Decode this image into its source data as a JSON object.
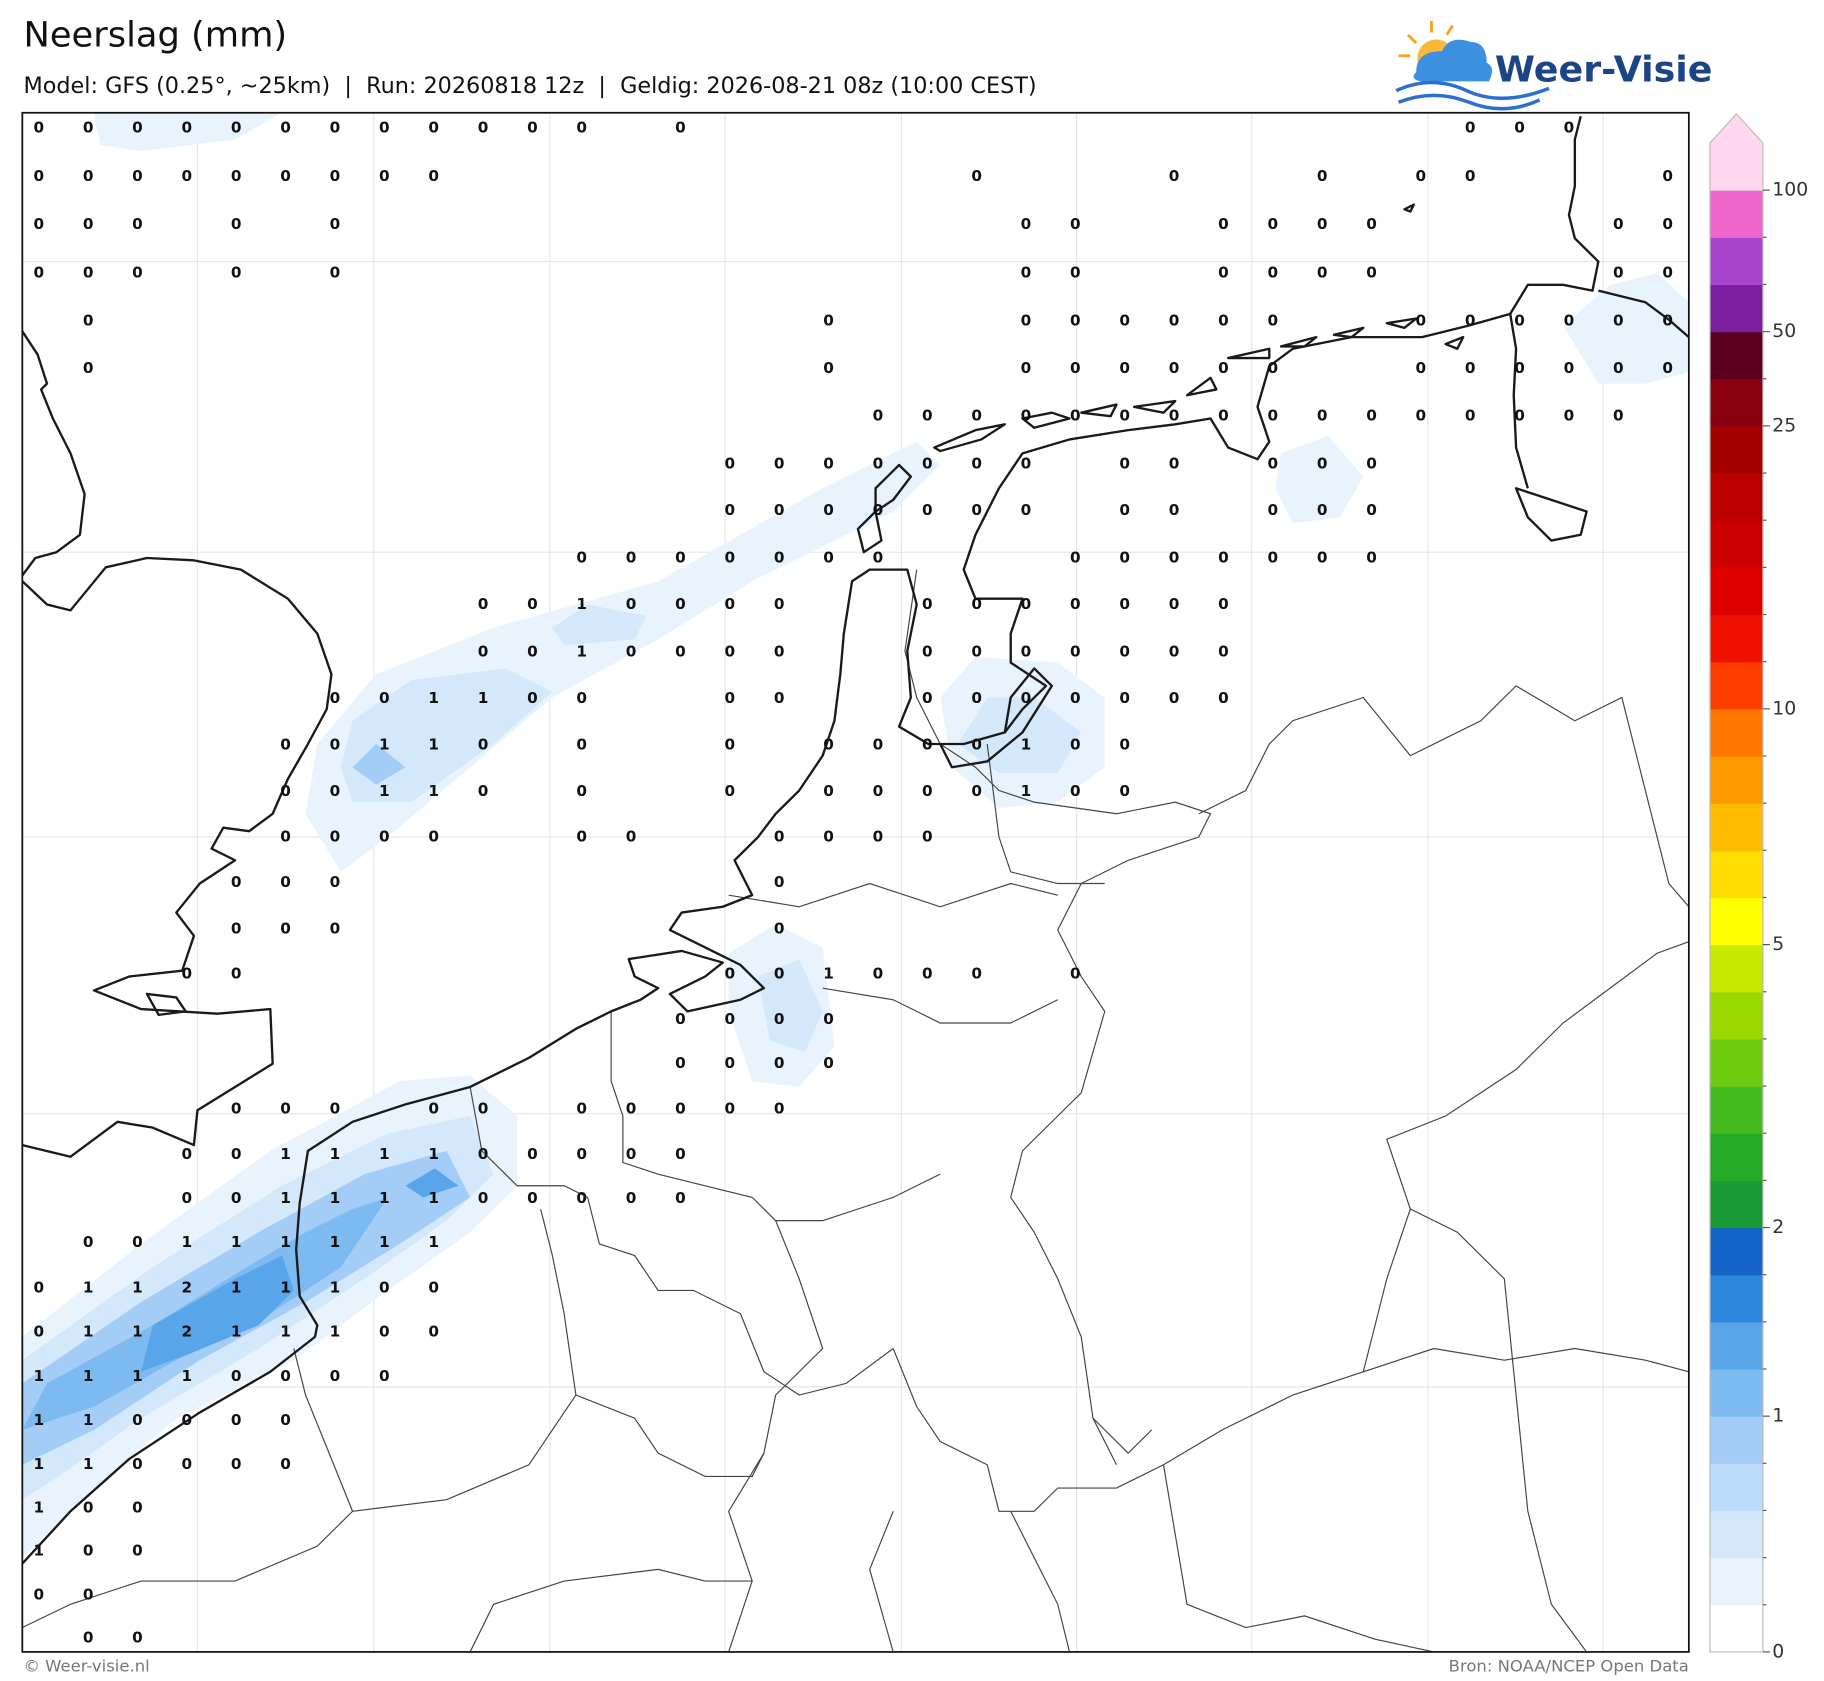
{
  "header": {
    "title": "Neerslag (mm)",
    "subtitle": "Model: GFS (0.25°, ~25km)  |  Run: 20260818 12z  |  Geldig: 2026-08-21 08z (10:00 CEST)",
    "logo": "Weer-Visie"
  },
  "map": {
    "values": [
      [
        0,
        0,
        0,
        0,
        0,
        0,
        0,
        0,
        0,
        0,
        0,
        0,
        null,
        0,
        null,
        null,
        null,
        null,
        null,
        null,
        null,
        null,
        null,
        null,
        null,
        null,
        null,
        null,
        null,
        0,
        0,
        0,
        null,
        null
      ],
      [
        0,
        0,
        0,
        0,
        0,
        0,
        0,
        0,
        0,
        null,
        null,
        null,
        null,
        null,
        null,
        null,
        null,
        null,
        null,
        0,
        null,
        null,
        null,
        0,
        null,
        null,
        0,
        null,
        0,
        0,
        null,
        null,
        null,
        0
      ],
      [
        0,
        0,
        0,
        null,
        0,
        null,
        0,
        null,
        null,
        null,
        null,
        null,
        null,
        null,
        null,
        null,
        null,
        null,
        null,
        null,
        0,
        0,
        null,
        null,
        0,
        0,
        0,
        0,
        null,
        null,
        null,
        null,
        0,
        0
      ],
      [
        0,
        0,
        0,
        null,
        0,
        null,
        0,
        null,
        null,
        null,
        null,
        null,
        null,
        null,
        null,
        null,
        null,
        null,
        null,
        null,
        0,
        0,
        null,
        null,
        0,
        0,
        0,
        0,
        null,
        null,
        null,
        null,
        0,
        0
      ],
      [
        null,
        0,
        null,
        null,
        null,
        null,
        null,
        null,
        null,
        null,
        null,
        null,
        null,
        null,
        null,
        null,
        0,
        null,
        null,
        null,
        0,
        0,
        0,
        0,
        0,
        0,
        null,
        null,
        0,
        0,
        0,
        0,
        0,
        0
      ],
      [
        null,
        0,
        null,
        null,
        null,
        null,
        null,
        null,
        null,
        null,
        null,
        null,
        null,
        null,
        null,
        null,
        0,
        null,
        null,
        null,
        0,
        0,
        0,
        0,
        0,
        0,
        null,
        null,
        0,
        0,
        0,
        0,
        0,
        0
      ],
      [
        null,
        null,
        null,
        null,
        null,
        null,
        null,
        null,
        null,
        null,
        null,
        null,
        null,
        null,
        null,
        null,
        null,
        0,
        0,
        0,
        0,
        0,
        0,
        0,
        0,
        0,
        0,
        0,
        0,
        0,
        0,
        0,
        0,
        null
      ],
      [
        null,
        null,
        null,
        null,
        null,
        null,
        null,
        null,
        null,
        null,
        null,
        null,
        null,
        null,
        0,
        0,
        0,
        0,
        0,
        0,
        0,
        null,
        0,
        0,
        null,
        0,
        0,
        0,
        null,
        null,
        null,
        null,
        null,
        null
      ],
      [
        null,
        null,
        null,
        null,
        null,
        null,
        null,
        null,
        null,
        null,
        null,
        null,
        null,
        null,
        0,
        0,
        0,
        0,
        0,
        0,
        0,
        null,
        0,
        0,
        null,
        0,
        0,
        0,
        null,
        null,
        null,
        null,
        null,
        null
      ],
      [
        null,
        null,
        null,
        null,
        null,
        null,
        null,
        null,
        null,
        null,
        null,
        0,
        0,
        0,
        0,
        0,
        0,
        0,
        null,
        null,
        null,
        0,
        0,
        0,
        0,
        0,
        0,
        0,
        null,
        null,
        null,
        null,
        null,
        null
      ],
      [
        null,
        null,
        null,
        null,
        null,
        null,
        null,
        null,
        null,
        0,
        0,
        1,
        0,
        0,
        0,
        0,
        null,
        null,
        0,
        0,
        0,
        0,
        0,
        0,
        0,
        null,
        null,
        null,
        null,
        null,
        null,
        null,
        null,
        null
      ],
      [
        null,
        null,
        null,
        null,
        null,
        null,
        null,
        null,
        null,
        0,
        0,
        1,
        0,
        0,
        0,
        0,
        null,
        null,
        0,
        0,
        0,
        0,
        0,
        0,
        0,
        null,
        null,
        null,
        null,
        null,
        null,
        null,
        null,
        null
      ],
      [
        null,
        null,
        null,
        null,
        null,
        null,
        0,
        0,
        1,
        1,
        0,
        0,
        null,
        null,
        0,
        0,
        null,
        null,
        0,
        0,
        0,
        0,
        0,
        0,
        0,
        null,
        null,
        null,
        null,
        null,
        null,
        null,
        null,
        null
      ],
      [
        null,
        null,
        null,
        null,
        null,
        0,
        0,
        1,
        1,
        0,
        null,
        0,
        null,
        null,
        0,
        null,
        0,
        0,
        0,
        0,
        1,
        0,
        0,
        null,
        null,
        null,
        null,
        null,
        null,
        null,
        null,
        null,
        null,
        null
      ],
      [
        null,
        null,
        null,
        null,
        null,
        0,
        0,
        1,
        1,
        0,
        null,
        0,
        null,
        null,
        0,
        null,
        0,
        0,
        0,
        0,
        1,
        0,
        0,
        null,
        null,
        null,
        null,
        null,
        null,
        null,
        null,
        null,
        null,
        null
      ],
      [
        null,
        null,
        null,
        null,
        null,
        0,
        0,
        0,
        0,
        null,
        null,
        0,
        0,
        null,
        null,
        0,
        0,
        0,
        0,
        null,
        null,
        null,
        null,
        null,
        null,
        null,
        null,
        null,
        null,
        null,
        null,
        null,
        null,
        null
      ],
      [
        null,
        null,
        null,
        null,
        0,
        0,
        0,
        null,
        null,
        null,
        null,
        null,
        null,
        null,
        null,
        0,
        null,
        null,
        null,
        null,
        null,
        null,
        null,
        null,
        null,
        null,
        null,
        null,
        null,
        null,
        null,
        null,
        null,
        null
      ],
      [
        null,
        null,
        null,
        null,
        0,
        0,
        0,
        null,
        null,
        null,
        null,
        null,
        null,
        null,
        null,
        0,
        null,
        null,
        null,
        null,
        null,
        null,
        null,
        null,
        null,
        null,
        null,
        null,
        null,
        null,
        null,
        null,
        null,
        null
      ],
      [
        null,
        null,
        null,
        0,
        0,
        null,
        null,
        null,
        null,
        null,
        null,
        null,
        null,
        null,
        0,
        0,
        1,
        0,
        0,
        0,
        null,
        0,
        null,
        null,
        null,
        null,
        null,
        null,
        null,
        null,
        null,
        null,
        null,
        null
      ],
      [
        null,
        null,
        null,
        null,
        null,
        null,
        null,
        null,
        null,
        null,
        null,
        null,
        null,
        0,
        0,
        0,
        0,
        null,
        null,
        null,
        null,
        null,
        null,
        null,
        null,
        null,
        null,
        null,
        null,
        null,
        null,
        null,
        null,
        null
      ],
      [
        null,
        null,
        null,
        null,
        null,
        null,
        null,
        null,
        null,
        null,
        null,
        null,
        null,
        0,
        0,
        0,
        0,
        null,
        null,
        null,
        null,
        null,
        null,
        null,
        null,
        null,
        null,
        null,
        null,
        null,
        null,
        null,
        null,
        null
      ],
      [
        null,
        null,
        null,
        null,
        0,
        0,
        0,
        null,
        0,
        0,
        null,
        0,
        0,
        0,
        0,
        0,
        null,
        null,
        null,
        null,
        null,
        null,
        null,
        null,
        null,
        null,
        null,
        null,
        null,
        null,
        null,
        null,
        null,
        null
      ],
      [
        null,
        null,
        null,
        0,
        0,
        1,
        1,
        1,
        1,
        0,
        0,
        0,
        0,
        0,
        null,
        null,
        null,
        null,
        null,
        null,
        null,
        null,
        null,
        null,
        null,
        null,
        null,
        null,
        null,
        null,
        null,
        null,
        null,
        null
      ],
      [
        null,
        null,
        null,
        0,
        0,
        1,
        1,
        1,
        1,
        0,
        0,
        0,
        0,
        0,
        null,
        null,
        null,
        null,
        null,
        null,
        null,
        null,
        null,
        null,
        null,
        null,
        null,
        null,
        null,
        null,
        null,
        null,
        null,
        null
      ],
      [
        null,
        0,
        0,
        1,
        1,
        1,
        1,
        1,
        1,
        null,
        null,
        null,
        null,
        null,
        null,
        null,
        null,
        null,
        null,
        null,
        null,
        null,
        null,
        null,
        null,
        null,
        null,
        null,
        null,
        null,
        null,
        null,
        null,
        null
      ],
      [
        0,
        1,
        1,
        2,
        1,
        1,
        1,
        0,
        0,
        null,
        null,
        null,
        null,
        null,
        null,
        null,
        null,
        null,
        null,
        null,
        null,
        null,
        null,
        null,
        null,
        null,
        null,
        null,
        null,
        null,
        null,
        null,
        null,
        null
      ],
      [
        0,
        1,
        1,
        2,
        1,
        1,
        1,
        0,
        0,
        null,
        null,
        null,
        null,
        null,
        null,
        null,
        null,
        null,
        null,
        null,
        null,
        null,
        null,
        null,
        null,
        null,
        null,
        null,
        null,
        null,
        null,
        null,
        null,
        null
      ],
      [
        1,
        1,
        1,
        1,
        0,
        0,
        0,
        0,
        null,
        null,
        null,
        null,
        null,
        null,
        null,
        null,
        null,
        null,
        null,
        null,
        null,
        null,
        null,
        null,
        null,
        null,
        null,
        null,
        null,
        null,
        null,
        null,
        null,
        null
      ],
      [
        1,
        1,
        0,
        0,
        0,
        0,
        null,
        null,
        null,
        null,
        null,
        null,
        null,
        null,
        null,
        null,
        null,
        null,
        null,
        null,
        null,
        null,
        null,
        null,
        null,
        null,
        null,
        null,
        null,
        null,
        null,
        null,
        null,
        null
      ],
      [
        1,
        1,
        0,
        0,
        0,
        0,
        null,
        null,
        null,
        null,
        null,
        null,
        null,
        null,
        null,
        null,
        null,
        null,
        null,
        null,
        null,
        null,
        null,
        null,
        null,
        null,
        null,
        null,
        null,
        null,
        null,
        null,
        null,
        null
      ],
      [
        1,
        0,
        0,
        null,
        null,
        null,
        null,
        null,
        null,
        null,
        null,
        null,
        null,
        null,
        null,
        null,
        null,
        null,
        null,
        null,
        null,
        null,
        null,
        null,
        null,
        null,
        null,
        null,
        null,
        null,
        null,
        null,
        null,
        null
      ],
      [
        1,
        0,
        0,
        null,
        null,
        null,
        null,
        null,
        null,
        null,
        null,
        null,
        null,
        null,
        null,
        null,
        null,
        null,
        null,
        null,
        null,
        null,
        null,
        null,
        null,
        null,
        null,
        null,
        null,
        null,
        null,
        null,
        null,
        null
      ],
      [
        0,
        0,
        null,
        null,
        null,
        null,
        null,
        null,
        null,
        null,
        null,
        null,
        null,
        null,
        null,
        null,
        null,
        null,
        null,
        null,
        null,
        null,
        null,
        null,
        null,
        null,
        null,
        null,
        null,
        null,
        null,
        null,
        null,
        null
      ],
      [
        null,
        0,
        0,
        null,
        null,
        null,
        null,
        null,
        null,
        null,
        null,
        null,
        null,
        null,
        null,
        null,
        null,
        null,
        null,
        null,
        null,
        null,
        null,
        null,
        null,
        null,
        null,
        null,
        null,
        null,
        null,
        null,
        null,
        null
      ]
    ]
  },
  "colorbar": {
    "levels": [
      0,
      0.1,
      0.25,
      0.5,
      0.75,
      1,
      1.25,
      1.5,
      1.75,
      2,
      2.5,
      3,
      3.5,
      4,
      4.5,
      5,
      6,
      7,
      8,
      9,
      10,
      12.5,
      15,
      17.5,
      20,
      22.5,
      25,
      35,
      50,
      65,
      80,
      100
    ],
    "colors": [
      "#ffffff",
      "#e8f3fd",
      "#d3e8fb",
      "#bcdcf9",
      "#a3cdf6",
      "#7dbaf0",
      "#58a5ea",
      "#2e87df",
      "#1565c9",
      "#1a9a35",
      "#24aa24",
      "#45bb1f",
      "#6dcc10",
      "#9ad900",
      "#c8ea00",
      "#ffff00",
      "#ffdd00",
      "#ffbb00",
      "#ff9900",
      "#ff7700",
      "#ff3d00",
      "#ee1100",
      "#dd0000",
      "#cc0000",
      "#bb0000",
      "#a40000",
      "#880010",
      "#5d001f",
      "#7a1fa0",
      "#aa44cc",
      "#ee66cc",
      "#ffd8f0"
    ],
    "ticks": [
      0,
      1,
      2,
      5,
      10,
      25,
      50,
      100
    ]
  },
  "footer": {
    "left": "© Weer-visie.nl",
    "right": "Bron: NOAA/NCEP Open Data"
  }
}
